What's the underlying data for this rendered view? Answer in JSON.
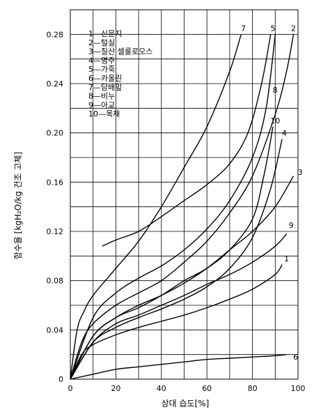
{
  "chart_data": {
    "type": "line",
    "xlabel": "상대 습도[%]",
    "ylabel": "함수율 [kgH₂O/kg 건조 고체]",
    "xlim": [
      0,
      100
    ],
    "ylim": [
      0,
      0.3
    ],
    "x_ticks": [
      "0",
      "20",
      "40",
      "60",
      "80",
      "100"
    ],
    "x_tick_values": [
      0,
      20,
      40,
      60,
      80,
      100
    ],
    "y_ticks": [
      "0",
      "0.04",
      "0.08",
      "0.12",
      "0.16",
      "0.20",
      "0.24",
      "0.28"
    ],
    "y_tick_values": [
      0,
      0.04,
      0.08,
      0.12,
      0.16,
      0.2,
      0.24,
      0.28
    ],
    "grid": true,
    "legend": [
      "1—신문지",
      "2—털실",
      "3—질산 셀룰로오스",
      "4—명주",
      "5—가죽",
      "6—카올린",
      "7—담배잎",
      "8—비누",
      "9—아교",
      "10—목재"
    ],
    "series": [
      {
        "name": "1",
        "label_at": [
          95,
          0.098
        ],
        "points": [
          [
            0,
            0
          ],
          [
            5,
            0.02
          ],
          [
            10,
            0.028
          ],
          [
            20,
            0.036
          ],
          [
            30,
            0.042
          ],
          [
            40,
            0.047
          ],
          [
            50,
            0.052
          ],
          [
            60,
            0.058
          ],
          [
            70,
            0.065
          ],
          [
            80,
            0.073
          ],
          [
            90,
            0.085
          ],
          [
            93,
            0.093
          ]
        ]
      },
      {
        "name": "2",
        "label_at": [
          98,
          0.285
        ],
        "points": [
          [
            0,
            0
          ],
          [
            5,
            0.03
          ],
          [
            10,
            0.045
          ],
          [
            20,
            0.06
          ],
          [
            30,
            0.07
          ],
          [
            40,
            0.08
          ],
          [
            50,
            0.095
          ],
          [
            60,
            0.112
          ],
          [
            70,
            0.135
          ],
          [
            80,
            0.165
          ],
          [
            90,
            0.215
          ],
          [
            95,
            0.25
          ],
          [
            98,
            0.28
          ]
        ]
      },
      {
        "name": "3",
        "label_at": [
          101,
          0.168
        ],
        "points": [
          [
            0,
            0
          ],
          [
            10,
            0.035
          ],
          [
            20,
            0.05
          ],
          [
            30,
            0.06
          ],
          [
            40,
            0.068
          ],
          [
            50,
            0.078
          ],
          [
            60,
            0.09
          ],
          [
            70,
            0.105
          ],
          [
            80,
            0.12
          ],
          [
            90,
            0.14
          ],
          [
            98,
            0.165
          ]
        ]
      },
      {
        "name": "4",
        "label_at": [
          94,
          0.2
        ],
        "points": [
          [
            0,
            0
          ],
          [
            10,
            0.03
          ],
          [
            20,
            0.042
          ],
          [
            30,
            0.05
          ],
          [
            40,
            0.057
          ],
          [
            50,
            0.065
          ],
          [
            60,
            0.075
          ],
          [
            70,
            0.09
          ],
          [
            80,
            0.115
          ],
          [
            88,
            0.155
          ],
          [
            93,
            0.195
          ]
        ]
      },
      {
        "name": "5",
        "label_at": [
          89,
          0.285
        ],
        "points": [
          [
            0,
            0
          ],
          [
            10,
            0.05
          ],
          [
            20,
            0.07
          ],
          [
            30,
            0.082
          ],
          [
            40,
            0.092
          ],
          [
            50,
            0.105
          ],
          [
            60,
            0.122
          ],
          [
            70,
            0.145
          ],
          [
            80,
            0.18
          ],
          [
            86,
            0.22
          ],
          [
            90,
            0.28
          ]
        ]
      },
      {
        "name": "6",
        "label_at": [
          99,
          0.018
        ],
        "points": [
          [
            0,
            0
          ],
          [
            10,
            0.004
          ],
          [
            20,
            0.008
          ],
          [
            30,
            0.01
          ],
          [
            40,
            0.012
          ],
          [
            50,
            0.014
          ],
          [
            60,
            0.016
          ],
          [
            70,
            0.017
          ],
          [
            80,
            0.018
          ],
          [
            90,
            0.019
          ],
          [
            95,
            0.02
          ]
        ]
      },
      {
        "name": "7",
        "label_at": [
          76,
          0.285
        ],
        "points": [
          [
            0,
            0
          ],
          [
            3,
            0.04
          ],
          [
            6,
            0.055
          ],
          [
            10,
            0.068
          ],
          [
            20,
            0.09
          ],
          [
            30,
            0.112
          ],
          [
            40,
            0.14
          ],
          [
            50,
            0.172
          ],
          [
            60,
            0.205
          ],
          [
            70,
            0.25
          ],
          [
            75,
            0.28
          ]
        ]
      },
      {
        "name": "8",
        "label_at": [
          90,
          0.235
        ],
        "points": [
          [
            14,
            0.108
          ],
          [
            20,
            0.113
          ],
          [
            30,
            0.12
          ],
          [
            40,
            0.132
          ],
          [
            50,
            0.145
          ],
          [
            60,
            0.158
          ],
          [
            70,
            0.175
          ],
          [
            78,
            0.2
          ],
          [
            84,
            0.24
          ],
          [
            88,
            0.28
          ]
        ]
      },
      {
        "name": "9",
        "label_at": [
          97,
          0.125
        ],
        "points": [
          [
            0,
            0
          ],
          [
            10,
            0.03
          ],
          [
            20,
            0.045
          ],
          [
            30,
            0.052
          ],
          [
            40,
            0.06
          ],
          [
            50,
            0.068
          ],
          [
            60,
            0.077
          ],
          [
            70,
            0.085
          ],
          [
            80,
            0.095
          ],
          [
            90,
            0.108
          ],
          [
            95,
            0.118
          ]
        ]
      },
      {
        "name": "10",
        "label_at": [
          90,
          0.21
        ],
        "points": [
          [
            0,
            0
          ],
          [
            10,
            0.035
          ],
          [
            20,
            0.05
          ],
          [
            30,
            0.058
          ],
          [
            40,
            0.068
          ],
          [
            50,
            0.08
          ],
          [
            60,
            0.09
          ],
          [
            70,
            0.105
          ],
          [
            80,
            0.13
          ],
          [
            85,
            0.165
          ],
          [
            89,
            0.205
          ]
        ]
      }
    ]
  }
}
